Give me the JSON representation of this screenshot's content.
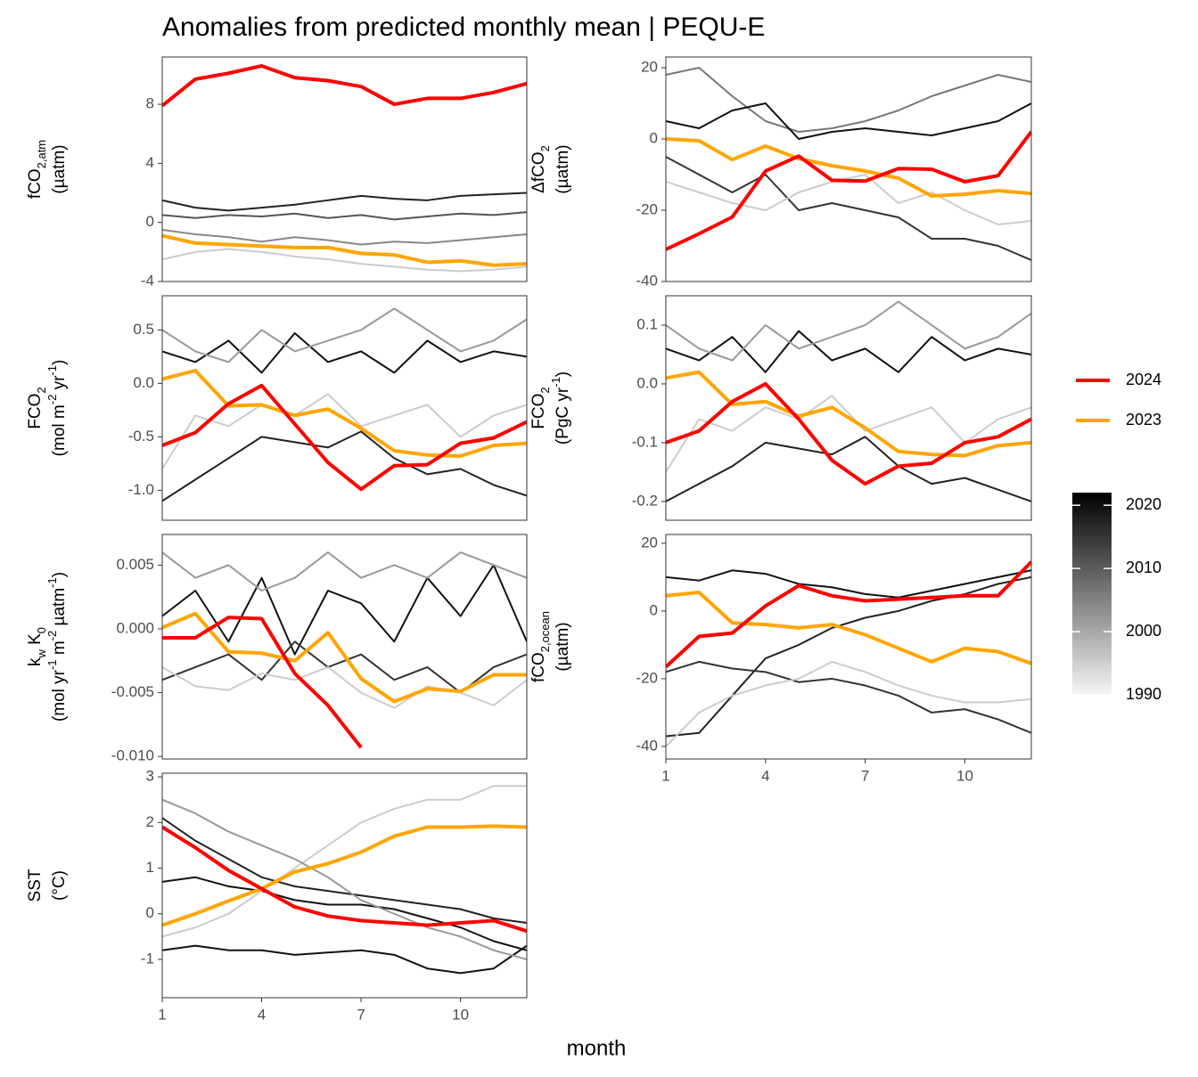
{
  "title": "Anomalies from predicted monthly mean | PEQU-E",
  "xlabel": "month",
  "legend": [
    {
      "name": "2024",
      "color": "#ff0000"
    },
    {
      "name": "2023",
      "color": "#ffa500"
    }
  ],
  "colorbar": {
    "lim": [
      1990,
      2022
    ],
    "ticks": [
      1990,
      2000,
      2010,
      2020
    ]
  },
  "chart_data": [
    {
      "type": "line",
      "ylabel": [
        [
          {
            "text": "fCO"
          },
          {
            "text": "2,atm",
            "shift": "sub"
          }
        ],
        [
          {
            "text": "(µatm)"
          }
        ]
      ],
      "x": [
        1,
        2,
        3,
        4,
        5,
        6,
        7,
        8,
        9,
        10,
        11,
        12
      ],
      "xlim": [
        1,
        12
      ],
      "ylim": [
        -4,
        11.2
      ],
      "yticks": [
        -4,
        0,
        4,
        8
      ],
      "series": [
        {
          "color": "#222222",
          "values": [
            1.5,
            1,
            0.8,
            1,
            1.2,
            1.5,
            1.8,
            1.6,
            1.5,
            1.8,
            1.9,
            2
          ]
        },
        {
          "color": "#555555",
          "values": [
            0.5,
            0.3,
            0.5,
            0.4,
            0.6,
            0.3,
            0.5,
            0.2,
            0.4,
            0.6,
            0.5,
            0.7
          ]
        },
        {
          "color": "#888888",
          "values": [
            -0.5,
            -0.8,
            -1,
            -1.3,
            -1,
            -1.2,
            -1.5,
            -1.3,
            -1.4,
            -1.2,
            -1,
            -0.8
          ]
        },
        {
          "color": "#cccccc",
          "values": [
            -2.5,
            -2,
            -1.8,
            -2,
            -2.3,
            -2.5,
            -2.8,
            -3,
            -3.2,
            -3.3,
            -3.2,
            -3
          ]
        },
        {
          "color": "#ffa500",
          "values": [
            -0.9,
            -1.4,
            -1.5,
            -1.6,
            -1.7,
            -1.7,
            -2.1,
            -2.2,
            -2.7,
            -2.6,
            -2.9,
            -2.8
          ]
        },
        {
          "color": "#ff0000",
          "values": [
            7.9,
            9.7,
            10.1,
            10.6,
            9.8,
            9.6,
            9.2,
            8.0,
            8.4,
            8.4,
            8.8,
            9.4
          ]
        }
      ]
    },
    {
      "type": "line",
      "ylabel": [
        [
          {
            "text": "ΔfCO"
          },
          {
            "text": "2",
            "shift": "sub"
          }
        ],
        [
          {
            "text": "(µatm)"
          }
        ]
      ],
      "x": [
        1,
        2,
        3,
        4,
        5,
        6,
        7,
        8,
        9,
        10,
        11,
        12
      ],
      "xlim": [
        1,
        12
      ],
      "ylim": [
        -40,
        23
      ],
      "yticks": [
        -40,
        -20,
        0,
        20
      ],
      "series": [
        {
          "color": "#777777",
          "values": [
            18,
            20,
            12,
            5,
            2,
            3,
            5,
            8,
            12,
            15,
            18,
            16
          ]
        },
        {
          "color": "#111111",
          "values": [
            5,
            3,
            8,
            10,
            0,
            2,
            3,
            2,
            1,
            3,
            5,
            10
          ]
        },
        {
          "color": "#333333",
          "values": [
            -5,
            -10,
            -15,
            -10,
            -20,
            -18,
            -20,
            -22,
            -28,
            -28,
            -30,
            -34
          ]
        },
        {
          "color": "#cccccc",
          "values": [
            -12,
            -15,
            -18,
            -20,
            -15,
            -12,
            -10,
            -18,
            -15,
            -20,
            -24,
            -23
          ]
        },
        {
          "color": "#ffa500",
          "values": [
            0,
            -0.5,
            -5.8,
            -2,
            -5.5,
            -7.5,
            -9,
            -11,
            -16,
            -15.5,
            -14.5,
            -15.3
          ]
        },
        {
          "color": "#ff0000",
          "values": [
            -31,
            -26.6,
            -21.9,
            -9,
            -4.8,
            -11.6,
            -11.8,
            -8.3,
            -8.5,
            -12,
            -10.3,
            2
          ]
        }
      ]
    },
    {
      "type": "line",
      "ylabel": [
        [
          {
            "text": "FCO"
          },
          {
            "text": "2",
            "shift": "sub"
          }
        ],
        [
          {
            "text": "(mol m"
          },
          {
            "text": "-2",
            "shift": "super"
          },
          {
            "text": " yr"
          },
          {
            "text": "-1",
            "shift": "super"
          },
          {
            "text": ")"
          }
        ]
      ],
      "x": [
        1,
        2,
        3,
        4,
        5,
        6,
        7,
        8,
        9,
        10,
        11,
        12
      ],
      "xlim": [
        1,
        12
      ],
      "ylim": [
        -1.28,
        0.82
      ],
      "yticks": [
        {
          "value": -1,
          "label": "-1.0"
        },
        -0.5,
        {
          "value": 0,
          "label": "0.0"
        },
        0.5
      ],
      "series": [
        {
          "color": "#111111",
          "values": [
            0.3,
            0.2,
            0.4,
            0.1,
            0.47,
            0.2,
            0.3,
            0.1,
            0.4,
            0.2,
            0.3,
            0.25
          ]
        },
        {
          "color": "#222222",
          "values": [
            -1.1,
            -0.9,
            -0.7,
            -0.5,
            -0.55,
            -0.6,
            -0.45,
            -0.7,
            -0.85,
            -0.8,
            -0.95,
            -1.05
          ]
        },
        {
          "color": "#999999",
          "values": [
            0.5,
            0.3,
            0.2,
            0.5,
            0.3,
            0.4,
            0.5,
            0.7,
            0.5,
            0.3,
            0.4,
            0.6
          ]
        },
        {
          "color": "#cccccc",
          "values": [
            -0.8,
            -0.3,
            -0.4,
            -0.2,
            -0.3,
            -0.1,
            -0.4,
            -0.3,
            -0.2,
            -0.5,
            -0.3,
            -0.2
          ]
        },
        {
          "color": "#ffa500",
          "values": [
            0.04,
            0.12,
            -0.21,
            -0.2,
            -0.3,
            -0.24,
            -0.42,
            -0.63,
            -0.67,
            -0.68,
            -0.58,
            -0.56
          ]
        },
        {
          "color": "#ff0000",
          "values": [
            -0.58,
            -0.46,
            -0.19,
            -0.02,
            -0.38,
            -0.74,
            -0.99,
            -0.77,
            -0.76,
            -0.56,
            -0.51,
            -0.36
          ]
        }
      ]
    },
    {
      "type": "line",
      "ylabel": [
        [
          {
            "text": "FCO"
          },
          {
            "text": "2",
            "shift": "sub"
          }
        ],
        [
          {
            "text": "(PgC yr"
          },
          {
            "text": "-1",
            "shift": "super"
          },
          {
            "text": ")"
          }
        ]
      ],
      "x": [
        1,
        2,
        3,
        4,
        5,
        6,
        7,
        8,
        9,
        10,
        11,
        12
      ],
      "xlim": [
        1,
        12
      ],
      "ylim": [
        -0.232,
        0.15
      ],
      "yticks": [
        -0.2,
        -0.1,
        {
          "value": 0,
          "label": "0.0"
        },
        0.1
      ],
      "series": [
        {
          "color": "#111111",
          "values": [
            0.06,
            0.04,
            0.08,
            0.02,
            0.09,
            0.04,
            0.06,
            0.02,
            0.08,
            0.04,
            0.06,
            0.05
          ]
        },
        {
          "color": "#222222",
          "values": [
            -0.2,
            -0.17,
            -0.14,
            -0.1,
            -0.11,
            -0.12,
            -0.09,
            -0.14,
            -0.17,
            -0.16,
            -0.18,
            -0.2
          ]
        },
        {
          "color": "#999999",
          "values": [
            0.1,
            0.06,
            0.04,
            0.1,
            0.06,
            0.08,
            0.1,
            0.14,
            0.1,
            0.06,
            0.08,
            0.12
          ]
        },
        {
          "color": "#cccccc",
          "values": [
            -0.15,
            -0.06,
            -0.08,
            -0.04,
            -0.06,
            -0.02,
            -0.08,
            -0.06,
            -0.04,
            -0.1,
            -0.06,
            -0.04
          ]
        },
        {
          "color": "#ffa500",
          "values": [
            0.01,
            0.02,
            -0.035,
            -0.03,
            -0.055,
            -0.04,
            -0.075,
            -0.115,
            -0.12,
            -0.122,
            -0.105,
            -0.1
          ]
        },
        {
          "color": "#ff0000",
          "values": [
            -0.1,
            -0.08,
            -0.03,
            0,
            -0.06,
            -0.13,
            -0.17,
            -0.14,
            -0.135,
            -0.1,
            -0.09,
            -0.06
          ]
        }
      ]
    },
    {
      "type": "line",
      "ylabel": [
        [
          {
            "text": "k"
          },
          {
            "text": "w",
            "shift": "sub"
          },
          {
            "text": " K"
          },
          {
            "text": "0",
            "shift": "sub"
          }
        ],
        [
          {
            "text": "(mol yr"
          },
          {
            "text": "-1",
            "shift": "super"
          },
          {
            "text": " m"
          },
          {
            "text": "-2",
            "shift": "super"
          },
          {
            "text": " µatm"
          },
          {
            "text": "-1",
            "shift": "super"
          },
          {
            "text": ")"
          }
        ]
      ],
      "x": [
        1,
        2,
        3,
        4,
        5,
        6,
        7,
        8,
        9,
        10,
        11,
        12
      ],
      "xlim": [
        1,
        12
      ],
      "ylim": [
        -0.0102,
        0.0074
      ],
      "yticks": [
        {
          "value": -0.01,
          "label": "-0.010"
        },
        -0.005,
        {
          "value": 0,
          "label": "0.000"
        },
        0.005
      ],
      "series": [
        {
          "color": "#111111",
          "values": [
            0.001,
            0.003,
            -0.001,
            0.004,
            -0.002,
            0.003,
            0.002,
            -0.001,
            0.004,
            0.001,
            0.005,
            -0.001
          ]
        },
        {
          "color": "#333333",
          "values": [
            -0.004,
            -0.003,
            -0.002,
            -0.004,
            -0.001,
            -0.003,
            -0.002,
            -0.004,
            -0.003,
            -0.005,
            -0.003,
            -0.002
          ]
        },
        {
          "color": "#999999",
          "values": [
            0.006,
            0.004,
            0.005,
            0.003,
            0.004,
            0.006,
            0.004,
            0.005,
            0.004,
            0.006,
            0.005,
            0.004
          ]
        },
        {
          "color": "#cccccc",
          "values": [
            -0.003,
            -0.0045,
            -0.0048,
            -0.0035,
            -0.004,
            -0.003,
            -0.005,
            -0.0062,
            -0.0045,
            -0.005,
            -0.006,
            -0.004
          ]
        },
        {
          "color": "#ffa500",
          "values": [
            0.0001,
            0.0012,
            -0.0018,
            -0.0019,
            -0.0025,
            -0.0003,
            -0.0039,
            -0.0057,
            -0.0047,
            -0.0049,
            -0.0036,
            -0.0036
          ]
        },
        {
          "color": "#ff0000",
          "values": [
            -0.0007,
            -0.0007,
            0.0009,
            0.0008,
            -0.0035,
            -0.006,
            -0.0093,
            null,
            null,
            null,
            null,
            null
          ]
        }
      ]
    },
    {
      "type": "line",
      "ylabel": [
        [
          {
            "text": "fCO"
          },
          {
            "text": "2,ocean",
            "shift": "sub"
          }
        ],
        [
          {
            "text": "(µatm)"
          }
        ]
      ],
      "x": [
        1,
        2,
        3,
        4,
        5,
        6,
        7,
        8,
        9,
        10,
        11,
        12
      ],
      "xlim": [
        1,
        12
      ],
      "xticks": [
        1,
        4,
        7,
        10
      ],
      "ylim": [
        -43.7,
        22.6
      ],
      "yticks": [
        -40,
        -20,
        0,
        20
      ],
      "series": [
        {
          "color": "#222222",
          "values": [
            -37,
            -36,
            -25,
            -14,
            -10,
            -5,
            -2,
            0,
            3,
            5,
            8,
            10
          ]
        },
        {
          "color": "#111111",
          "values": [
            10,
            9,
            12,
            11,
            8,
            7,
            5,
            4,
            6,
            8,
            10,
            12
          ]
        },
        {
          "color": "#333333",
          "values": [
            -18,
            -15,
            -17,
            -18,
            -21,
            -20,
            -22,
            -25,
            -30,
            -29,
            -32,
            -36
          ]
        },
        {
          "color": "#cccccc",
          "values": [
            -40,
            -30,
            -25,
            -22,
            -20,
            -15,
            -18,
            -22,
            -25,
            -27,
            -27,
            -26
          ]
        },
        {
          "color": "#ffa500",
          "values": [
            4.5,
            5.5,
            -3.5,
            -4,
            -5,
            -4,
            -7,
            -11,
            -15,
            -11,
            -12,
            -15.5
          ]
        },
        {
          "color": "#ff0000",
          "values": [
            -16.5,
            -7.5,
            -6.5,
            1.5,
            7.5,
            4.5,
            3,
            3.5,
            4,
            4.5,
            4.5,
            14.5
          ]
        }
      ]
    },
    {
      "type": "line",
      "ylabel": [
        [
          {
            "text": "SST"
          }
        ],
        [
          {
            "text": "(°C)"
          }
        ]
      ],
      "x": [
        1,
        2,
        3,
        4,
        5,
        6,
        7,
        8,
        9,
        10,
        11,
        12
      ],
      "xlim": [
        1,
        12
      ],
      "xticks": [
        1,
        4,
        7,
        10
      ],
      "ylim": [
        -1.84,
        3.08
      ],
      "yticks": [
        -1,
        0,
        1,
        2,
        3
      ],
      "series": [
        {
          "color": "#222222",
          "values": [
            2.1,
            1.6,
            1.2,
            0.8,
            0.6,
            0.5,
            0.4,
            0.3,
            0.2,
            0.1,
            -0.1,
            -0.2
          ]
        },
        {
          "color": "#111111",
          "values": [
            0.7,
            0.8,
            0.6,
            0.5,
            0.3,
            0.2,
            0.2,
            0.1,
            -0.1,
            -0.3,
            -0.6,
            -0.8
          ]
        },
        {
          "color": "#111111",
          "values": [
            -0.8,
            -0.7,
            -0.8,
            -0.8,
            -0.9,
            -0.85,
            -0.8,
            -0.9,
            -1.2,
            -1.3,
            -1.2,
            -0.7
          ]
        },
        {
          "color": "#cccccc",
          "values": [
            -0.5,
            -0.3,
            0,
            0.5,
            1,
            1.5,
            2,
            2.3,
            2.5,
            2.5,
            2.8,
            2.8
          ]
        },
        {
          "color": "#999999",
          "values": [
            2.5,
            2.2,
            1.8,
            1.5,
            1.2,
            0.8,
            0.3,
            0,
            -0.3,
            -0.5,
            -0.8,
            -1
          ]
        },
        {
          "color": "#ffa500",
          "values": [
            -0.25,
            0,
            0.28,
            0.55,
            0.92,
            1.1,
            1.35,
            1.7,
            1.9,
            1.9,
            1.92,
            1.9
          ]
        },
        {
          "color": "#ff0000",
          "values": [
            1.9,
            1.45,
            0.95,
            0.55,
            0.15,
            -0.05,
            -0.15,
            -0.2,
            -0.25,
            -0.2,
            -0.15,
            -0.38
          ]
        }
      ]
    }
  ]
}
